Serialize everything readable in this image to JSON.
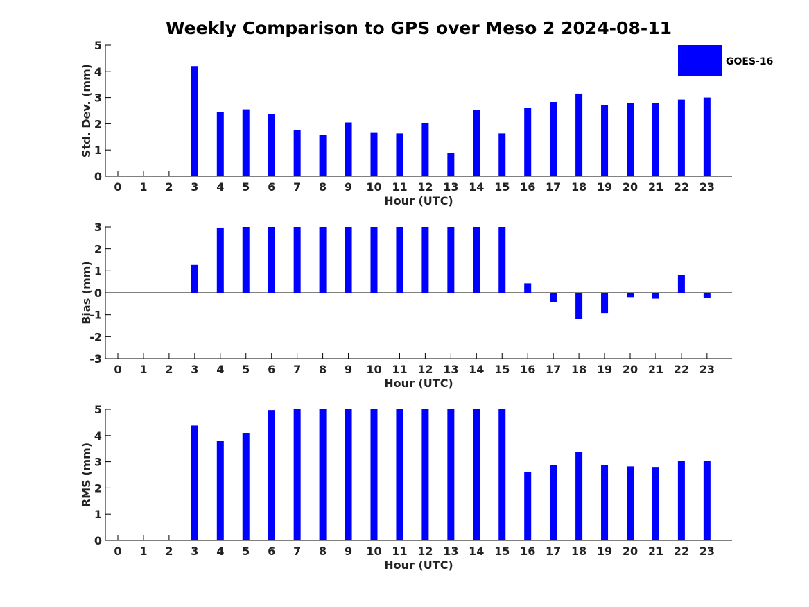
{
  "title": "Weekly Comparison to GPS over Meso 2 2024-08-11",
  "legend": {
    "label": "GOES-16",
    "position": "top-right",
    "color": "#0000ff"
  },
  "chart_data": [
    {
      "type": "bar",
      "ylabel": "Std. Dev. (mm)",
      "xlabel": "Hour (UTC)",
      "ylim": [
        0,
        5
      ],
      "yticks": [
        "0",
        "1",
        "2",
        "3",
        "4",
        "5"
      ],
      "categories": [
        "0",
        "1",
        "2",
        "3",
        "4",
        "5",
        "6",
        "7",
        "8",
        "9",
        "10",
        "11",
        "12",
        "13",
        "14",
        "15",
        "16",
        "17",
        "18",
        "19",
        "20",
        "21",
        "22",
        "23"
      ],
      "series": [
        {
          "name": "GOES-16",
          "values": [
            null,
            null,
            null,
            4.2,
            2.45,
            2.55,
            2.37,
            1.77,
            1.58,
            2.05,
            1.65,
            1.63,
            2.02,
            0.88,
            2.52,
            1.63,
            2.6,
            2.83,
            3.15,
            2.72,
            2.8,
            2.78,
            2.92,
            3.0
          ]
        }
      ]
    },
    {
      "type": "bar",
      "ylabel": "Bias (mm)",
      "xlabel": "Hour (UTC)",
      "ylim": [
        -3,
        3
      ],
      "yticks": [
        "-3",
        "-2",
        "-1",
        "0",
        "1",
        "2",
        "3"
      ],
      "categories": [
        "0",
        "1",
        "2",
        "3",
        "4",
        "5",
        "6",
        "7",
        "8",
        "9",
        "10",
        "11",
        "12",
        "13",
        "14",
        "15",
        "16",
        "17",
        "18",
        "19",
        "20",
        "21",
        "22",
        "23"
      ],
      "series": [
        {
          "name": "GOES-16",
          "values": [
            null,
            null,
            null,
            1.27,
            2.97,
            3.0,
            3.0,
            3.0,
            3.0,
            3.0,
            3.0,
            3.0,
            3.0,
            3.0,
            3.0,
            3.0,
            0.43,
            -0.42,
            -1.2,
            -0.92,
            -0.2,
            -0.27,
            0.8,
            -0.22
          ]
        }
      ]
    },
    {
      "type": "bar",
      "ylabel": "RMS (mm)",
      "xlabel": "Hour (UTC)",
      "ylim": [
        0,
        5
      ],
      "yticks": [
        "0",
        "1",
        "2",
        "3",
        "4",
        "5"
      ],
      "categories": [
        "0",
        "1",
        "2",
        "3",
        "4",
        "5",
        "6",
        "7",
        "8",
        "9",
        "10",
        "11",
        "12",
        "13",
        "14",
        "15",
        "16",
        "17",
        "18",
        "19",
        "20",
        "21",
        "22",
        "23"
      ],
      "series": [
        {
          "name": "GOES-16",
          "values": [
            null,
            null,
            null,
            4.38,
            3.8,
            4.1,
            4.97,
            5.0,
            5.0,
            5.0,
            5.0,
            5.0,
            5.0,
            5.0,
            5.0,
            5.0,
            2.62,
            2.87,
            3.38,
            2.87,
            2.82,
            2.8,
            3.02,
            3.02
          ]
        }
      ]
    }
  ]
}
